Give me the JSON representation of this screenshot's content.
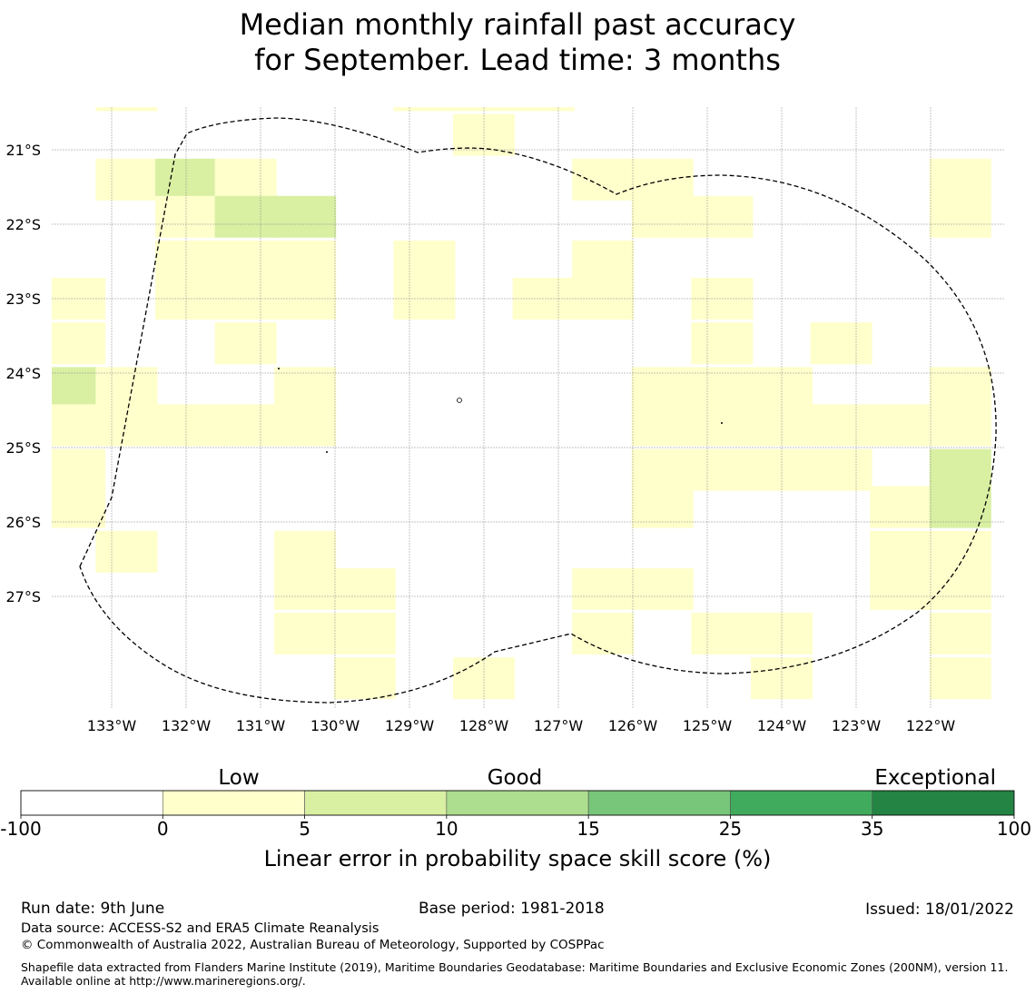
{
  "title": {
    "line1": "Median monthly rainfall past accuracy",
    "line2": "for September. Lead time: 3 months"
  },
  "map": {
    "lat_labels": [
      "21°S",
      "22°S",
      "23°S",
      "24°S",
      "25°S",
      "26°S",
      "27°S"
    ],
    "lon_labels": [
      "133°W",
      "132°W",
      "131°W",
      "130°W",
      "129°W",
      "128°W",
      "127°W",
      "126°W",
      "125°W",
      "124°W",
      "123°W",
      "122°W"
    ],
    "grid": "on",
    "boundary_style": "dashed",
    "skill_cells": [
      {
        "lon": -132.8,
        "lat": -20.2,
        "band": "0-5"
      },
      {
        "lon": -128.8,
        "lat": -20.2,
        "band": "0-5"
      },
      {
        "lon": -128.0,
        "lat": -20.2,
        "band": "0-5"
      },
      {
        "lon": -127.2,
        "lat": -20.2,
        "band": "0-5"
      },
      {
        "lon": -128.0,
        "lat": -20.8,
        "band": "0-5"
      },
      {
        "lon": -132.8,
        "lat": -21.4,
        "band": "0-5"
      },
      {
        "lon": -132.0,
        "lat": -21.4,
        "band": "5-10"
      },
      {
        "lon": -131.2,
        "lat": -21.4,
        "band": "0-5"
      },
      {
        "lon": -126.4,
        "lat": -21.4,
        "band": "0-5"
      },
      {
        "lon": -125.6,
        "lat": -21.4,
        "band": "0-5"
      },
      {
        "lon": -121.6,
        "lat": -21.4,
        "band": "0-5"
      },
      {
        "lon": -132.0,
        "lat": -21.9,
        "band": "0-5"
      },
      {
        "lon": -131.2,
        "lat": -21.9,
        "band": "5-10"
      },
      {
        "lon": -130.4,
        "lat": -21.9,
        "band": "5-10"
      },
      {
        "lon": -125.6,
        "lat": -21.9,
        "band": "0-5"
      },
      {
        "lon": -124.8,
        "lat": -21.9,
        "band": "0-5"
      },
      {
        "lon": -121.6,
        "lat": -21.9,
        "band": "0-5"
      },
      {
        "lon": -132.0,
        "lat": -22.5,
        "band": "0-5"
      },
      {
        "lon": -131.2,
        "lat": -22.5,
        "band": "0-5"
      },
      {
        "lon": -130.4,
        "lat": -22.5,
        "band": "0-5"
      },
      {
        "lon": -128.8,
        "lat": -22.5,
        "band": "0-5"
      },
      {
        "lon": -126.4,
        "lat": -22.5,
        "band": "0-5"
      },
      {
        "lon": -132.0,
        "lat": -23.0,
        "band": "0-5"
      },
      {
        "lon": -131.2,
        "lat": -23.0,
        "band": "0-5"
      },
      {
        "lon": -130.4,
        "lat": -23.0,
        "band": "0-5"
      },
      {
        "lon": -128.8,
        "lat": -23.0,
        "band": "0-5"
      },
      {
        "lon": -127.2,
        "lat": -23.0,
        "band": "0-5"
      },
      {
        "lon": -126.4,
        "lat": -23.0,
        "band": "0-5"
      },
      {
        "lon": -124.8,
        "lat": -23.0,
        "band": "0-5"
      },
      {
        "lon": -133.5,
        "lat": -23.0,
        "band": "0-5"
      },
      {
        "lon": -131.2,
        "lat": -23.6,
        "band": "0-5"
      },
      {
        "lon": -124.8,
        "lat": -23.6,
        "band": "0-5"
      },
      {
        "lon": -123.2,
        "lat": -23.6,
        "band": "0-5"
      },
      {
        "lon": -133.5,
        "lat": -23.6,
        "band": "0-5"
      },
      {
        "lon": -133.5,
        "lat": -24.2,
        "band": "5-10"
      },
      {
        "lon": -132.8,
        "lat": -24.2,
        "band": "0-5"
      },
      {
        "lon": -130.4,
        "lat": -24.2,
        "band": "0-5"
      },
      {
        "lon": -125.6,
        "lat": -24.2,
        "band": "0-5"
      },
      {
        "lon": -124.8,
        "lat": -24.2,
        "band": "0-5"
      },
      {
        "lon": -124.0,
        "lat": -24.2,
        "band": "0-5"
      },
      {
        "lon": -121.6,
        "lat": -24.2,
        "band": "0-5"
      },
      {
        "lon": -133.5,
        "lat": -24.7,
        "band": "0-5"
      },
      {
        "lon": -132.8,
        "lat": -24.7,
        "band": "0-5"
      },
      {
        "lon": -132.0,
        "lat": -24.7,
        "band": "0-5"
      },
      {
        "lon": -131.2,
        "lat": -24.7,
        "band": "0-5"
      },
      {
        "lon": -130.4,
        "lat": -24.7,
        "band": "0-5"
      },
      {
        "lon": -125.6,
        "lat": -24.7,
        "band": "0-5"
      },
      {
        "lon": -124.8,
        "lat": -24.7,
        "band": "0-5"
      },
      {
        "lon": -124.0,
        "lat": -24.7,
        "band": "0-5"
      },
      {
        "lon": -123.2,
        "lat": -24.7,
        "band": "0-5"
      },
      {
        "lon": -122.4,
        "lat": -24.7,
        "band": "0-5"
      },
      {
        "lon": -121.6,
        "lat": -24.7,
        "band": "0-5"
      },
      {
        "lon": -133.5,
        "lat": -25.3,
        "band": "0-5"
      },
      {
        "lon": -125.6,
        "lat": -25.3,
        "band": "0-5"
      },
      {
        "lon": -124.8,
        "lat": -25.3,
        "band": "0-5"
      },
      {
        "lon": -124.0,
        "lat": -25.3,
        "band": "0-5"
      },
      {
        "lon": -123.2,
        "lat": -25.3,
        "band": "0-5"
      },
      {
        "lon": -121.6,
        "lat": -25.3,
        "band": "5-10"
      },
      {
        "lon": -133.5,
        "lat": -25.8,
        "band": "0-5"
      },
      {
        "lon": -125.6,
        "lat": -25.8,
        "band": "0-5"
      },
      {
        "lon": -122.4,
        "lat": -25.8,
        "band": "0-5"
      },
      {
        "lon": -121.6,
        "lat": -25.8,
        "band": "5-10"
      },
      {
        "lon": -132.8,
        "lat": -26.4,
        "band": "0-5"
      },
      {
        "lon": -130.4,
        "lat": -26.4,
        "band": "0-5"
      },
      {
        "lon": -122.4,
        "lat": -26.4,
        "band": "0-5"
      },
      {
        "lon": -121.6,
        "lat": -26.4,
        "band": "0-5"
      },
      {
        "lon": -130.4,
        "lat": -26.9,
        "band": "0-5"
      },
      {
        "lon": -129.6,
        "lat": -26.9,
        "band": "0-5"
      },
      {
        "lon": -126.4,
        "lat": -26.9,
        "band": "0-5"
      },
      {
        "lon": -125.6,
        "lat": -26.9,
        "band": "0-5"
      },
      {
        "lon": -122.4,
        "lat": -26.9,
        "band": "0-5"
      },
      {
        "lon": -121.6,
        "lat": -26.9,
        "band": "0-5"
      },
      {
        "lon": -130.4,
        "lat": -27.5,
        "band": "0-5"
      },
      {
        "lon": -129.6,
        "lat": -27.5,
        "band": "0-5"
      },
      {
        "lon": -126.4,
        "lat": -27.5,
        "band": "0-5"
      },
      {
        "lon": -124.8,
        "lat": -27.5,
        "band": "0-5"
      },
      {
        "lon": -124.0,
        "lat": -27.5,
        "band": "0-5"
      },
      {
        "lon": -121.6,
        "lat": -27.5,
        "band": "0-5"
      },
      {
        "lon": -129.6,
        "lat": -28.1,
        "band": "0-5"
      },
      {
        "lon": -128.0,
        "lat": -28.1,
        "band": "0-5"
      },
      {
        "lon": -124.0,
        "lat": -28.1,
        "band": "0-5"
      },
      {
        "lon": -121.6,
        "lat": -28.1,
        "band": "0-5"
      }
    ]
  },
  "colorbar": {
    "categories": [
      "Low",
      "Good",
      "Exceptional"
    ],
    "ticks": [
      "-100",
      "0",
      "5",
      "10",
      "15",
      "25",
      "35",
      "100"
    ],
    "colors": [
      "#ffffff",
      "#ffffcc",
      "#d9f0a3",
      "#addd8e",
      "#78c679",
      "#41ab5d",
      "#238443"
    ],
    "label": "Linear error in probability space skill score (%)"
  },
  "footer": {
    "run_date": "Run date: 9th June",
    "base_period": "Base period: 1981-2018",
    "issued": "Issued: 18/01/2022",
    "data_source": "Data source: ACCESS-S2 and ERA5 Climate Reanalysis",
    "copyright": "© Commonwealth of Australia 2022, Australian Bureau of Meteorology, Supported by COSPPac",
    "shapefile": "Shapefile data extracted from Flanders Marine Institute (2019), Maritime Boundaries Geodatabase: Maritime Boundaries and Exclusive Economic Zones (200NM), version 11. Available online at http://www.marineregions.org/."
  }
}
